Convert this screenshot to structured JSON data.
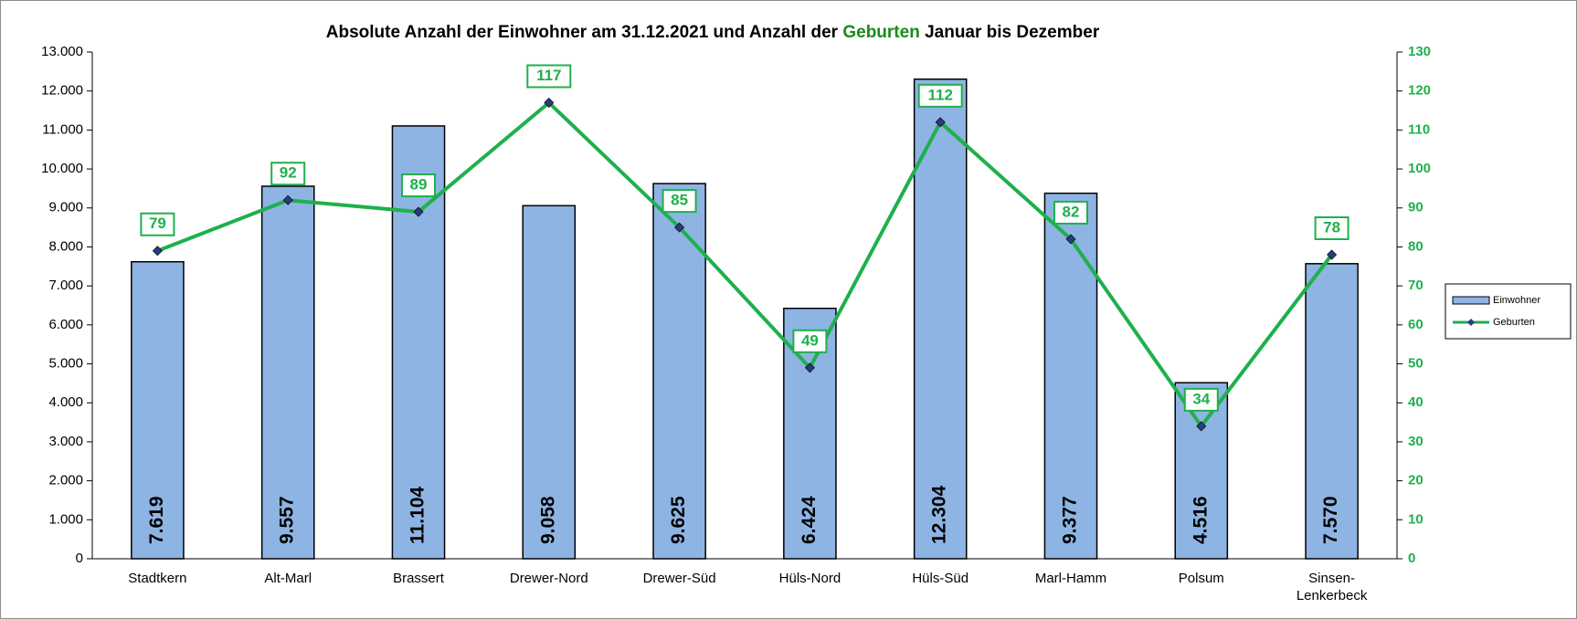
{
  "chart_data": {
    "type": "bar",
    "title": [
      "Absolute Anzahl der Einwohner am 31.12.2021 und Anzahl der",
      "Geburten",
      "Januar bis Dezember"
    ],
    "categories": [
      "Stadtkern",
      "Alt-Marl",
      "Brassert",
      "Drewer-Nord",
      "Drewer-Süd",
      "Hüls-Nord",
      "Hüls-Süd",
      "Marl-Hamm",
      "Polsum",
      "Sinsen-\nLenkerbeck"
    ],
    "series": [
      {
        "name": "Einwohner",
        "type": "bar",
        "color": "#8eb4e3",
        "values": [
          7619,
          9557,
          11104,
          9058,
          9625,
          6424,
          12304,
          9377,
          4516,
          7570
        ],
        "value_labels": [
          "7.619",
          "9.557",
          "11.104",
          "9.058",
          "9.625",
          "6.424",
          "12.304",
          "9.377",
          "4.516",
          "7.570"
        ]
      },
      {
        "name": "Geburten",
        "type": "line",
        "axis": "y2",
        "color": "#1fb04c",
        "marker_color": "#2b3a86",
        "values": [
          79,
          92,
          89,
          117,
          85,
          49,
          112,
          82,
          34,
          78
        ]
      }
    ],
    "ylim": [
      0,
      13000
    ],
    "yticks": [
      0,
      {
        "value": 1000,
        "label": "1.000"
      },
      {
        "value": 2000,
        "label": "2.000"
      },
      {
        "value": 3000,
        "label": "3.000"
      },
      {
        "value": 4000,
        "label": "4.000"
      },
      {
        "value": 5000,
        "label": "5.000"
      },
      {
        "value": 6000,
        "label": "6.000"
      },
      {
        "value": 7000,
        "label": "7.000"
      },
      {
        "value": 8000,
        "label": "8.000"
      },
      {
        "value": 9000,
        "label": "9.000"
      },
      {
        "value": 10000,
        "label": "10.000"
      },
      {
        "value": 11000,
        "label": "11.000"
      },
      {
        "value": 12000,
        "label": "12.000"
      },
      {
        "value": 13000,
        "label": "13.000"
      }
    ],
    "y2lim": [
      0,
      130
    ],
    "y2ticks": [
      0,
      10,
      20,
      30,
      40,
      50,
      60,
      70,
      80,
      90,
      100,
      110,
      120,
      130
    ],
    "legend": "right"
  }
}
